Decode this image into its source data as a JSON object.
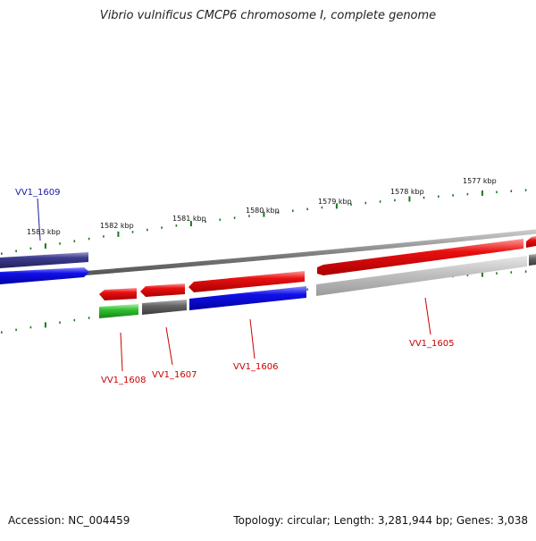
{
  "title": "Vibrio vulnificus CMCP6 chromosome I, complete genome",
  "footer": {
    "accession": "Accession: NC_004459",
    "summary": "Topology: circular; Length: 3,281,944 bp; Genes: 3,038"
  },
  "ruler_labels": [
    "1583 kbp",
    "1582 kbp",
    "1581 kbp",
    "1580 kbp",
    "1579 kbp",
    "1578 kbp",
    "1577 kbp"
  ],
  "gene_labels": [
    {
      "text": "VV1_1609",
      "color": "#1a1aa6"
    },
    {
      "text": "VV1_1608",
      "color": "#cc0000"
    },
    {
      "text": "VV1_1607",
      "color": "#cc0000"
    },
    {
      "text": "VV1_1606",
      "color": "#cc0000"
    },
    {
      "text": "VV1_1605",
      "color": "#cc0000"
    }
  ],
  "colors": {
    "ruler": "#1a7a1a",
    "backbone": "#808080",
    "red": "#e01010",
    "blue": "#1010e0",
    "navy": "#3a3a8a",
    "green": "#30c030",
    "gray": "#666666",
    "lightgray": "#c0c0c0"
  }
}
